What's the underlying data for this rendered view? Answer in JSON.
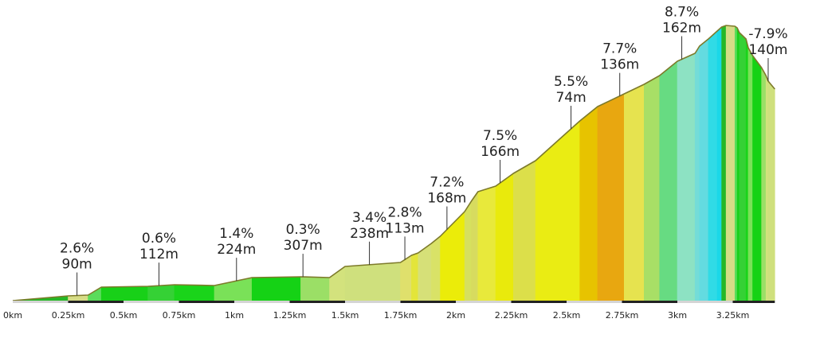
{
  "chart_data": {
    "type": "area",
    "title": "",
    "xlabel": "",
    "ylabel": "",
    "x_unit": "km",
    "xlim": [
      0,
      3.45
    ],
    "x_ticks": [
      {
        "value": 0,
        "label": "0km"
      },
      {
        "value": 0.25,
        "label": "0.25km"
      },
      {
        "value": 0.5,
        "label": "0.5km"
      },
      {
        "value": 0.75,
        "label": "0.75km"
      },
      {
        "value": 1,
        "label": "1km"
      },
      {
        "value": 1.25,
        "label": "1.25km"
      },
      {
        "value": 1.5,
        "label": "1.5km"
      },
      {
        "value": 1.75,
        "label": "1.75km"
      },
      {
        "value": 2,
        "label": "2km"
      },
      {
        "value": 2.25,
        "label": "2.25km"
      },
      {
        "value": 2.5,
        "label": "2.5km"
      },
      {
        "value": 2.75,
        "label": "2.75km"
      },
      {
        "value": 3,
        "label": "3km"
      },
      {
        "value": 3.25,
        "label": "3.25km"
      }
    ],
    "profile_y": [
      0,
      6,
      7,
      17,
      18,
      20,
      19,
      29,
      30,
      29,
      43,
      48,
      57,
      60,
      72,
      81,
      112,
      125,
      137,
      144,
      160,
      176,
      226,
      244,
      260,
      272,
      283,
      301,
      311,
      320,
      329,
      339,
      344,
      346,
      345,
      343,
      337,
      329,
      318,
      308,
      293,
      283,
      276,
      266
    ],
    "profile_x": [
      0,
      0.25,
      0.34,
      0.4,
      0.61,
      0.73,
      0.91,
      1.08,
      1.3,
      1.43,
      1.5,
      1.75,
      1.8,
      1.83,
      1.89,
      1.93,
      2.04,
      2.07,
      2.1,
      2.18,
      2.26,
      2.36,
      2.56,
      2.64,
      2.76,
      2.85,
      2.92,
      3.0,
      3.08,
      3.1,
      3.14,
      3.18,
      3.2,
      3.22,
      3.26,
      3.27,
      3.28,
      3.31,
      3.32,
      3.34,
      3.38,
      3.4,
      3.41,
      3.44
    ],
    "fill_colors": [
      "#26b726",
      "#d6dc86",
      "#5bdc5b",
      "#18d018",
      "#35d135",
      "#1ad41a",
      "#7ae158",
      "#15d215",
      "#9bdf66",
      "#d3e27d",
      "#cfe07d",
      "#dfe06c",
      "#e3e53a",
      "#d6e078",
      "#d9e267",
      "#ebec09",
      "#d6e05e",
      "#d7db5f",
      "#e8e93b",
      "#e9ea0c",
      "#dcdf4a",
      "#eaec13",
      "#e7c300",
      "#e8a710",
      "#e6e34f",
      "#a8df66",
      "#67db82",
      "#8de2c3",
      "#74dcd8",
      "#63dbe0",
      "#30dbe6",
      "#1ad8e8"
    ],
    "segment_labels": [
      {
        "x": 0.29,
        "grade": "2.6%",
        "length": "90m"
      },
      {
        "x": 0.66,
        "grade": "0.6%",
        "length": "112m"
      },
      {
        "x": 1.01,
        "grade": "1.4%",
        "length": "224m"
      },
      {
        "x": 1.31,
        "grade": "0.3%",
        "length": "307m"
      },
      {
        "x": 1.61,
        "grade": "3.4%",
        "length": "238m"
      },
      {
        "x": 1.77,
        "grade": "2.8%",
        "length": "113m"
      },
      {
        "x": 1.96,
        "grade": "7.2%",
        "length": "168m"
      },
      {
        "x": 2.2,
        "grade": "7.5%",
        "length": "166m"
      },
      {
        "x": 2.52,
        "grade": "5.5%",
        "length": "74m"
      },
      {
        "x": 2.74,
        "grade": "7.7%",
        "length": "136m"
      },
      {
        "x": 3.02,
        "grade": "8.7%",
        "length": "162m"
      },
      {
        "x": 3.41,
        "grade": "-7.9%",
        "length": "140m"
      }
    ],
    "grid": false,
    "legend": "none"
  }
}
